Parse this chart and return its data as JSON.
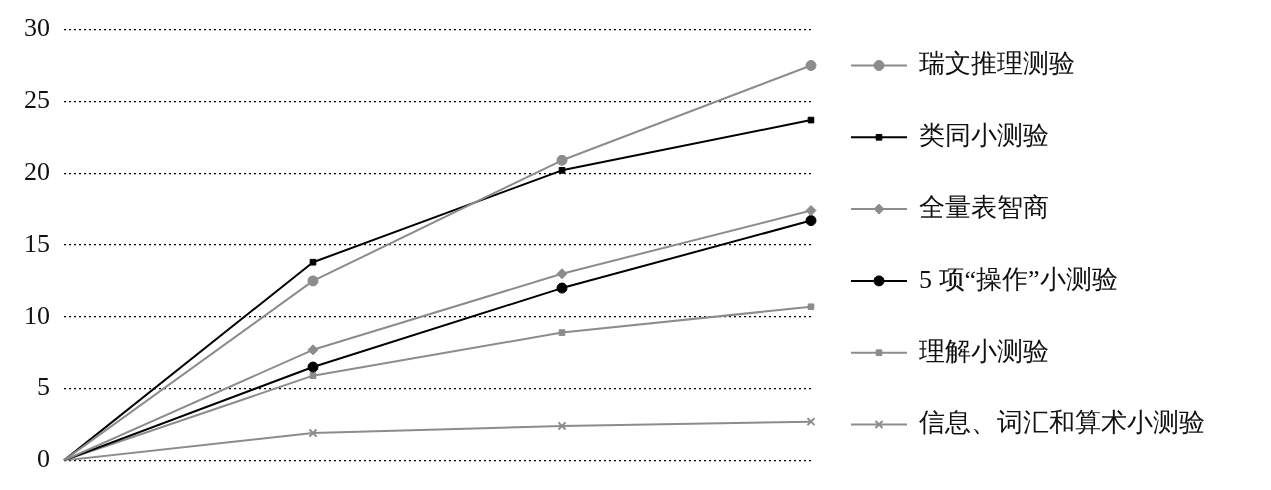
{
  "chart_data": {
    "type": "line",
    "categories": [
      null,
      null,
      null,
      null
    ],
    "ylim": [
      0,
      30
    ],
    "yticks": [
      0,
      5,
      10,
      15,
      20,
      25,
      30
    ],
    "grid": "y",
    "legend": "right",
    "tick_labels": "y",
    "line_style": "solid",
    "series": [
      {
        "name": "瑞文推理测验",
        "color": "#8c8c8c",
        "marker": "circle",
        "values": [
          0,
          12.5,
          20.9,
          27.5
        ]
      },
      {
        "name": "类同小测验",
        "color": "#000000",
        "marker": "square",
        "values": [
          0,
          13.8,
          20.2,
          23.7
        ]
      },
      {
        "name": "全量表智商",
        "color": "#8c8c8c",
        "marker": "diamond",
        "values": [
          0,
          7.7,
          13,
          17.4
        ]
      },
      {
        "name": "5 项“操作”小测验",
        "color": "#000000",
        "marker": "circle",
        "values": [
          0,
          6.5,
          12,
          16.7
        ]
      },
      {
        "name": "理解小测验",
        "color": "#8c8c8c",
        "marker": "square",
        "values": [
          0,
          5.9,
          8.9,
          10.7
        ]
      },
      {
        "name": "信息、词汇和算术小测验",
        "color": "#8c8c8c",
        "marker": "cross",
        "values": [
          0,
          1.9,
          2.4,
          2.7
        ]
      }
    ]
  }
}
